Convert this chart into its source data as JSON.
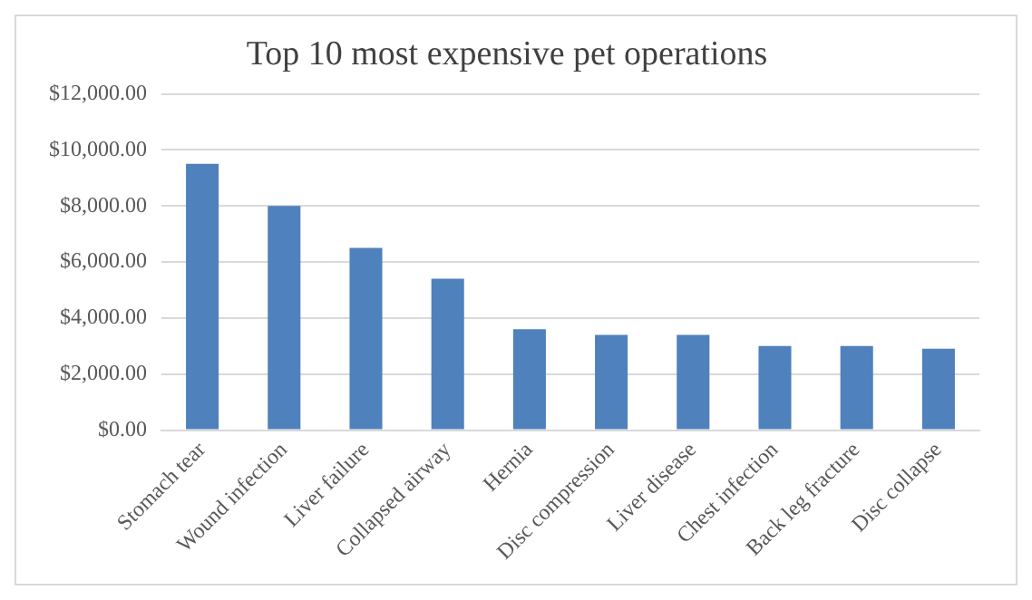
{
  "chart_data": {
    "type": "bar",
    "title": "Top 10 most expensive pet operations",
    "categories": [
      "Stomach tear",
      "Wound infection",
      "Liver failure",
      "Collapsed airway",
      "Hernia",
      "Disc compression",
      "Liver disease",
      "Chest infection",
      "Back leg fracture",
      "Disc collapse"
    ],
    "values": [
      9500,
      8000,
      6500,
      5400,
      3600,
      3400,
      3400,
      3000,
      3000,
      2900
    ],
    "color": "#4f81bd",
    "ylim": [
      0,
      12000
    ],
    "yticks": [
      {
        "value": 0,
        "label": "$0.00"
      },
      {
        "value": 2000,
        "label": "$2,000.00"
      },
      {
        "value": 4000,
        "label": "$4,000.00"
      },
      {
        "value": 6000,
        "label": "$6,000.00"
      },
      {
        "value": 8000,
        "label": "$8,000.00"
      },
      {
        "value": 10000,
        "label": "$10,000.00"
      },
      {
        "value": 12000,
        "label": "$12,000.00"
      }
    ],
    "grid": "y",
    "legend": false
  }
}
